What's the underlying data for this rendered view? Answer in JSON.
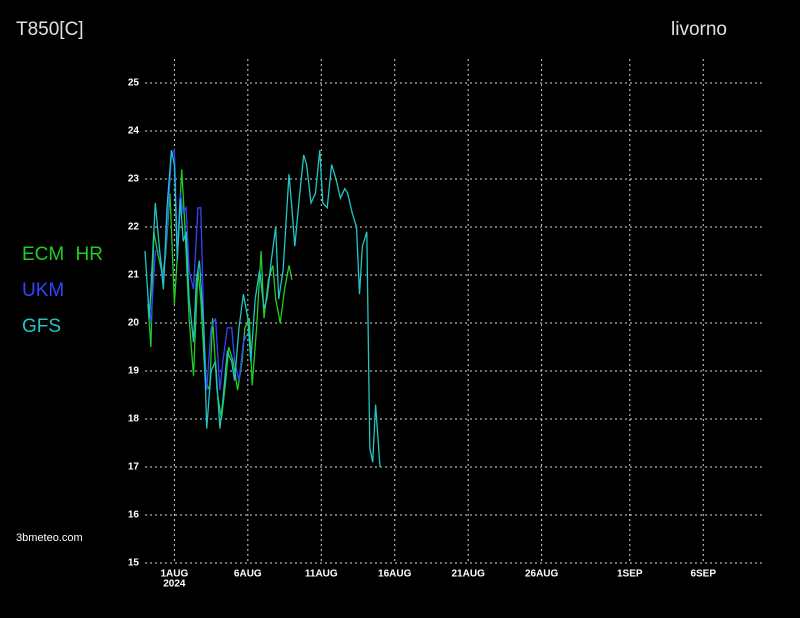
{
  "chart_data": {
    "type": "line",
    "title": "T850[C]",
    "subtitle": "livorno",
    "source": "3bmeteo.com",
    "x_sublabel": "2024",
    "xlim": [
      -1,
      41
    ],
    "xticks": [
      {
        "value": 1,
        "label": "1AUG"
      },
      {
        "value": 6,
        "label": "6AUG"
      },
      {
        "value": 11,
        "label": "11AUG"
      },
      {
        "value": 16,
        "label": "16AUG"
      },
      {
        "value": 21,
        "label": "21AUG"
      },
      {
        "value": 26,
        "label": "26AUG"
      },
      {
        "value": 32,
        "label": "1SEP"
      },
      {
        "value": 37,
        "label": "6SEP"
      }
    ],
    "ylim": [
      15,
      25.5
    ],
    "yticks": [
      15,
      16,
      17,
      18,
      19,
      20,
      21,
      22,
      23,
      24,
      25
    ],
    "grid": true,
    "legend": "left",
    "series": [
      {
        "name": "ECM HR",
        "color": "#22cc22",
        "x": [
          -0.8,
          -0.6,
          -0.4,
          -0.1,
          0.2,
          0.4,
          0.7,
          1.0,
          1.3,
          1.5,
          1.7,
          2.0,
          2.3,
          2.6,
          2.8,
          3.1,
          3.4,
          3.6,
          3.9,
          4.2,
          4.5,
          4.7,
          5.0,
          5.3,
          5.6,
          5.8,
          6.1,
          6.3,
          6.6,
          6.9,
          7.1,
          7.4,
          7.7,
          7.9,
          8.2,
          8.5,
          8.8,
          9.0
        ],
        "values": [
          20.4,
          19.5,
          21.9,
          21.4,
          21.0,
          21.4,
          22.7,
          20.4,
          21.9,
          23.2,
          22.1,
          20.1,
          18.9,
          21.1,
          20.5,
          18.8,
          18.6,
          20.1,
          18.6,
          18.0,
          18.8,
          19.5,
          19.2,
          18.6,
          19.2,
          19.9,
          20.1,
          18.7,
          19.9,
          21.5,
          20.1,
          20.9,
          21.2,
          20.5,
          20.0,
          20.7,
          21.2,
          20.9
        ]
      },
      {
        "name": "UKM",
        "color": "#3344ff",
        "x": [
          -0.8,
          -0.6,
          -0.3,
          0.0,
          0.25,
          0.5,
          0.8,
          1.0,
          1.2,
          1.4,
          1.6,
          1.8,
          2.0,
          2.3,
          2.6,
          2.8,
          3.0,
          3.2,
          3.5,
          3.8,
          4.1,
          4.3,
          4.6,
          4.9,
          5.1,
          5.4,
          5.7,
          6.0
        ],
        "values": [
          20.5,
          20.0,
          21.5,
          21.5,
          20.9,
          21.9,
          23.5,
          23.6,
          21.5,
          22.7,
          22.3,
          22.4,
          21.1,
          20.7,
          22.4,
          22.4,
          19.9,
          18.6,
          19.9,
          20.1,
          18.6,
          19.2,
          19.9,
          19.9,
          19.2,
          18.8,
          19.6,
          19.8
        ]
      },
      {
        "name": "GFS",
        "color": "#22c4c4",
        "x": [
          -1.0,
          -0.7,
          -0.3,
          0.0,
          0.25,
          0.5,
          0.8,
          1.0,
          1.2,
          1.4,
          1.6,
          1.8,
          2.0,
          2.3,
          2.5,
          2.7,
          3.0,
          3.2,
          3.5,
          3.8,
          4.1,
          4.3,
          4.6,
          4.9,
          5.1,
          5.4,
          5.7,
          6.0,
          6.2,
          6.5,
          6.8,
          7.1,
          7.3,
          7.6,
          7.9,
          8.1,
          8.4,
          8.8,
          9.0,
          9.2,
          9.5,
          9.8,
          10.0,
          10.3,
          10.6,
          10.9,
          11.1,
          11.4,
          11.7,
          12.0,
          12.3,
          12.6,
          12.8,
          13.1,
          13.4,
          13.6,
          13.8,
          14.1,
          14.3,
          14.5,
          14.7,
          15.0
        ],
        "values": [
          21.5,
          20.1,
          22.5,
          21.5,
          20.7,
          22.4,
          23.6,
          23.3,
          21.3,
          22.6,
          21.7,
          21.9,
          20.5,
          19.6,
          20.9,
          21.3,
          19.9,
          17.8,
          19.0,
          19.2,
          17.8,
          18.4,
          19.4,
          19.2,
          18.8,
          19.9,
          20.6,
          20.1,
          19.2,
          20.5,
          21.1,
          20.3,
          20.5,
          21.3,
          22.0,
          20.5,
          21.1,
          23.1,
          22.4,
          21.6,
          22.6,
          23.5,
          23.3,
          22.5,
          22.7,
          23.6,
          22.5,
          22.4,
          23.3,
          23.0,
          22.6,
          22.8,
          22.7,
          22.3,
          22.0,
          20.6,
          21.6,
          21.9,
          17.4,
          17.1,
          18.3,
          17.0
        ]
      }
    ]
  }
}
